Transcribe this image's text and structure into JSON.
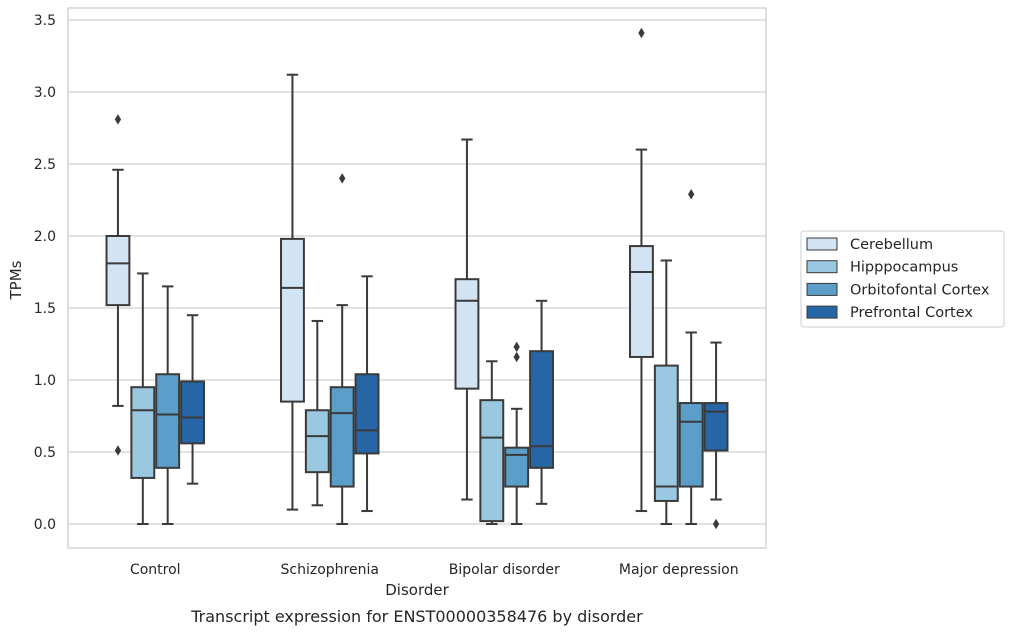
{
  "chart_data": {
    "type": "box",
    "title": "",
    "caption": "Transcript expression for ENST00000358476 by disorder",
    "xlabel": "Disorder",
    "ylabel": "TPMs",
    "ylim": [
      -0.17,
      3.58
    ],
    "yticks": [
      "0.0",
      "0.5",
      "1.0",
      "1.5",
      "2.0",
      "2.5",
      "3.0",
      "3.5"
    ],
    "ytick_values": [
      0,
      0.5,
      1.0,
      1.5,
      2.0,
      2.5,
      3.0,
      3.5
    ],
    "grid": "horizontal",
    "legend_position": "right",
    "categories": [
      "Control",
      "Schizophrenia",
      "Bipolar disorder",
      "Major depression"
    ],
    "series": [
      {
        "name": "Cerebellum",
        "color": "#d2e3f3",
        "boxes": [
          {
            "whisker_low": 0.82,
            "q1": 1.52,
            "median": 1.81,
            "q3": 2.0,
            "whisker_high": 2.46,
            "outliers": [
              2.81,
              0.51
            ]
          },
          {
            "whisker_low": 0.1,
            "q1": 0.85,
            "median": 1.64,
            "q3": 1.98,
            "whisker_high": 3.12,
            "outliers": []
          },
          {
            "whisker_low": 0.17,
            "q1": 0.94,
            "median": 1.55,
            "q3": 1.7,
            "whisker_high": 2.67,
            "outliers": []
          },
          {
            "whisker_low": 0.09,
            "q1": 1.16,
            "median": 1.75,
            "q3": 1.93,
            "whisker_high": 2.6,
            "outliers": [
              3.41
            ]
          }
        ]
      },
      {
        "name": "Hipppocampus",
        "color": "#9ac8e0",
        "boxes": [
          {
            "whisker_low": 0.0,
            "q1": 0.32,
            "median": 0.79,
            "q3": 0.95,
            "whisker_high": 1.74,
            "outliers": []
          },
          {
            "whisker_low": 0.13,
            "q1": 0.36,
            "median": 0.61,
            "q3": 0.79,
            "whisker_high": 1.41,
            "outliers": []
          },
          {
            "whisker_low": 0.0,
            "q1": 0.02,
            "median": 0.6,
            "q3": 0.86,
            "whisker_high": 1.13,
            "outliers": []
          },
          {
            "whisker_low": 0.0,
            "q1": 0.16,
            "median": 0.26,
            "q3": 1.1,
            "whisker_high": 1.83,
            "outliers": []
          }
        ]
      },
      {
        "name": "Orbitofontal Cortex",
        "color": "#5a9ec9",
        "boxes": [
          {
            "whisker_low": 0.0,
            "q1": 0.39,
            "median": 0.76,
            "q3": 1.04,
            "whisker_high": 1.65,
            "outliers": []
          },
          {
            "whisker_low": 0.0,
            "q1": 0.26,
            "median": 0.77,
            "q3": 0.95,
            "whisker_high": 1.52,
            "outliers": [
              2.4
            ]
          },
          {
            "whisker_low": 0.0,
            "q1": 0.26,
            "median": 0.48,
            "q3": 0.53,
            "whisker_high": 0.8,
            "outliers": [
              1.23,
              1.16
            ]
          },
          {
            "whisker_low": 0.0,
            "q1": 0.26,
            "median": 0.71,
            "q3": 0.84,
            "whisker_high": 1.33,
            "outliers": [
              2.29
            ]
          }
        ]
      },
      {
        "name": "Prefrontal Cortex",
        "color": "#2666a6",
        "boxes": [
          {
            "whisker_low": 0.28,
            "q1": 0.56,
            "median": 0.74,
            "q3": 0.99,
            "whisker_high": 1.45,
            "outliers": []
          },
          {
            "whisker_low": 0.09,
            "q1": 0.49,
            "median": 0.65,
            "q3": 1.04,
            "whisker_high": 1.72,
            "outliers": []
          },
          {
            "whisker_low": 0.14,
            "q1": 0.39,
            "median": 0.54,
            "q3": 1.2,
            "whisker_high": 1.55,
            "outliers": []
          },
          {
            "whisker_low": 0.17,
            "q1": 0.51,
            "median": 0.78,
            "q3": 0.84,
            "whisker_high": 1.26,
            "outliers": [
              0.0
            ]
          }
        ]
      }
    ]
  }
}
